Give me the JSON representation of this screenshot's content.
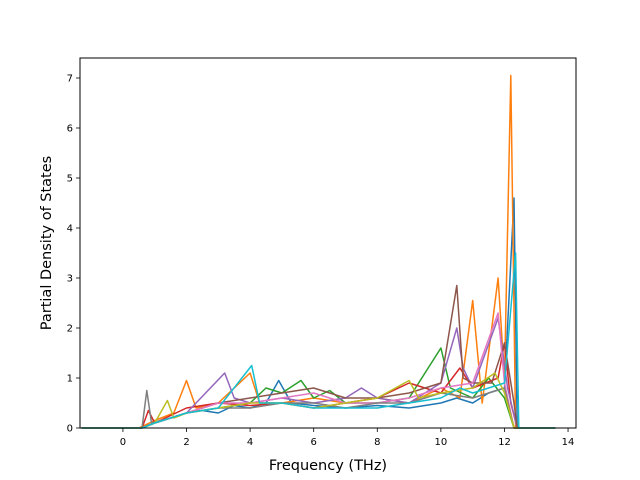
{
  "chart_data": {
    "type": "line",
    "title": "",
    "xlabel": "Frequency (THz)",
    "ylabel": "Partial Density of States",
    "xlim": [
      -1.35,
      14.25
    ],
    "ylim": [
      0,
      7.4
    ],
    "xticks": [
      0,
      2,
      4,
      6,
      8,
      10,
      12,
      14
    ],
    "yticks": [
      0,
      1,
      2,
      3,
      4,
      5,
      6,
      7
    ],
    "grid": false,
    "legend": "none",
    "colors": [
      "#1f77b4",
      "#ff7f0e",
      "#2ca02c",
      "#d62728",
      "#9467bd",
      "#8c564b",
      "#e377c2",
      "#7f7f7f",
      "#bcbd22",
      "#17becf"
    ],
    "series": [
      {
        "values": [
          [
            -1.3,
            0
          ],
          [
            0.5,
            0
          ],
          [
            1,
            0.1
          ],
          [
            1.5,
            0.2
          ],
          [
            2,
            0.3
          ],
          [
            2.5,
            0.35
          ],
          [
            3,
            0.3
          ],
          [
            3.5,
            0.45
          ],
          [
            4,
            0.4
          ],
          [
            4.5,
            0.5
          ],
          [
            4.9,
            0.95
          ],
          [
            5.3,
            0.5
          ],
          [
            6,
            0.45
          ],
          [
            7,
            0.4
          ],
          [
            8,
            0.45
          ],
          [
            9,
            0.4
          ],
          [
            10,
            0.5
          ],
          [
            10.5,
            0.6
          ],
          [
            11,
            0.5
          ],
          [
            11.5,
            0.7
          ],
          [
            12,
            0.8
          ],
          [
            12.3,
            4.6
          ],
          [
            12.4,
            0
          ],
          [
            13.6,
            0
          ]
        ]
      },
      {
        "values": [
          [
            -1.3,
            0
          ],
          [
            0.5,
            0
          ],
          [
            1,
            0.15
          ],
          [
            1.6,
            0.3
          ],
          [
            2,
            0.95
          ],
          [
            2.3,
            0.4
          ],
          [
            3,
            0.5
          ],
          [
            4,
            1.1
          ],
          [
            4.3,
            0.5
          ],
          [
            5,
            0.5
          ],
          [
            6,
            0.6
          ],
          [
            7,
            0.5
          ],
          [
            8,
            0.6
          ],
          [
            9,
            0.5
          ],
          [
            10,
            0.8
          ],
          [
            10.6,
            0.6
          ],
          [
            11,
            2.55
          ],
          [
            11.3,
            0.5
          ],
          [
            11.8,
            3.0
          ],
          [
            12,
            1.0
          ],
          [
            12.2,
            7.05
          ],
          [
            12.35,
            0
          ],
          [
            13.6,
            0
          ]
        ]
      },
      {
        "values": [
          [
            -1.3,
            0
          ],
          [
            0.6,
            0
          ],
          [
            1,
            0.1
          ],
          [
            2,
            0.3
          ],
          [
            3,
            0.4
          ],
          [
            4,
            0.5
          ],
          [
            4.5,
            0.8
          ],
          [
            5,
            0.7
          ],
          [
            5.6,
            0.95
          ],
          [
            6,
            0.6
          ],
          [
            6.5,
            0.75
          ],
          [
            7,
            0.5
          ],
          [
            8,
            0.5
          ],
          [
            9,
            0.6
          ],
          [
            10,
            1.6
          ],
          [
            10.3,
            0.8
          ],
          [
            11,
            0.6
          ],
          [
            11.5,
            1.0
          ],
          [
            12,
            0.6
          ],
          [
            12.3,
            0
          ],
          [
            13.6,
            0
          ]
        ]
      },
      {
        "values": [
          [
            -1.3,
            0
          ],
          [
            0.6,
            0
          ],
          [
            0.8,
            0.35
          ],
          [
            1,
            0.1
          ],
          [
            2,
            0.4
          ],
          [
            3,
            0.5
          ],
          [
            4,
            0.45
          ],
          [
            5,
            0.5
          ],
          [
            6,
            0.4
          ],
          [
            7,
            0.5
          ],
          [
            8,
            0.6
          ],
          [
            9,
            0.9
          ],
          [
            10,
            0.7
          ],
          [
            10.6,
            1.2
          ],
          [
            11,
            0.8
          ],
          [
            11.8,
            1.0
          ],
          [
            12,
            1.7
          ],
          [
            12.2,
            0.5
          ],
          [
            12.4,
            0
          ],
          [
            13.6,
            0
          ]
        ]
      },
      {
        "values": [
          [
            -1.3,
            0
          ],
          [
            0.6,
            0
          ],
          [
            1,
            0.1
          ],
          [
            2,
            0.3
          ],
          [
            3.2,
            1.1
          ],
          [
            3.5,
            0.6
          ],
          [
            4,
            0.5
          ],
          [
            5,
            0.6
          ],
          [
            6,
            0.5
          ],
          [
            7,
            0.6
          ],
          [
            7.5,
            0.8
          ],
          [
            8,
            0.6
          ],
          [
            9,
            0.5
          ],
          [
            10,
            0.9
          ],
          [
            10.5,
            2.0
          ],
          [
            10.7,
            1.2
          ],
          [
            11,
            0.8
          ],
          [
            11.8,
            2.2
          ],
          [
            12.1,
            0.8
          ],
          [
            12.4,
            0
          ],
          [
            13.6,
            0
          ]
        ]
      },
      {
        "values": [
          [
            -1.3,
            0
          ],
          [
            0.6,
            0
          ],
          [
            1,
            0.1
          ],
          [
            2,
            0.3
          ],
          [
            3,
            0.5
          ],
          [
            4,
            0.6
          ],
          [
            5,
            0.7
          ],
          [
            6,
            0.8
          ],
          [
            7,
            0.6
          ],
          [
            8,
            0.6
          ],
          [
            9,
            0.7
          ],
          [
            10,
            0.9
          ],
          [
            10.5,
            2.85
          ],
          [
            10.7,
            1.0
          ],
          [
            11,
            0.9
          ],
          [
            11.6,
            0.9
          ],
          [
            12,
            1.7
          ],
          [
            12.3,
            0.5
          ],
          [
            12.4,
            0
          ],
          [
            13.6,
            0
          ]
        ]
      },
      {
        "values": [
          [
            -1.3,
            0
          ],
          [
            0.6,
            0
          ],
          [
            1,
            0.1
          ],
          [
            2,
            0.3
          ],
          [
            3,
            0.5
          ],
          [
            4,
            0.5
          ],
          [
            5,
            0.6
          ],
          [
            6,
            0.7
          ],
          [
            7,
            0.5
          ],
          [
            8,
            0.5
          ],
          [
            9,
            0.6
          ],
          [
            10,
            0.8
          ],
          [
            11,
            0.9
          ],
          [
            11.8,
            2.3
          ],
          [
            12,
            0.9
          ],
          [
            12.3,
            0
          ],
          [
            13.6,
            0
          ]
        ]
      },
      {
        "values": [
          [
            -1.3,
            0
          ],
          [
            0.6,
            0
          ],
          [
            0.75,
            0.75
          ],
          [
            0.9,
            0.1
          ],
          [
            1.5,
            0.2
          ],
          [
            2,
            0.3
          ],
          [
            3,
            0.4
          ],
          [
            4,
            0.4
          ],
          [
            5,
            0.5
          ],
          [
            6,
            0.5
          ],
          [
            7,
            0.4
          ],
          [
            8,
            0.5
          ],
          [
            9,
            0.5
          ],
          [
            10,
            0.7
          ],
          [
            11,
            0.6
          ],
          [
            12,
            0.8
          ],
          [
            12.3,
            0
          ],
          [
            13.6,
            0
          ]
        ]
      },
      {
        "values": [
          [
            -1.3,
            0
          ],
          [
            0.6,
            0
          ],
          [
            1,
            0.1
          ],
          [
            1.4,
            0.55
          ],
          [
            1.6,
            0.2
          ],
          [
            2,
            0.3
          ],
          [
            3,
            0.4
          ],
          [
            4,
            0.5
          ],
          [
            5,
            0.5
          ],
          [
            6,
            0.4
          ],
          [
            7,
            0.5
          ],
          [
            8,
            0.6
          ],
          [
            9,
            0.95
          ],
          [
            9.3,
            0.6
          ],
          [
            10,
            0.7
          ],
          [
            11,
            0.8
          ],
          [
            11.7,
            1.1
          ],
          [
            12,
            0.7
          ],
          [
            12.3,
            0
          ],
          [
            13.6,
            0
          ]
        ]
      },
      {
        "values": [
          [
            -1.3,
            0
          ],
          [
            0.6,
            0
          ],
          [
            1,
            0.1
          ],
          [
            2,
            0.3
          ],
          [
            3,
            0.4
          ],
          [
            4.05,
            1.25
          ],
          [
            4.3,
            0.5
          ],
          [
            5,
            0.5
          ],
          [
            6,
            0.4
          ],
          [
            7,
            0.4
          ],
          [
            8,
            0.4
          ],
          [
            9,
            0.5
          ],
          [
            10,
            0.6
          ],
          [
            10.6,
            0.8
          ],
          [
            11,
            0.7
          ],
          [
            12,
            0.9
          ],
          [
            12.35,
            3.5
          ],
          [
            12.45,
            0
          ],
          [
            13.6,
            0
          ]
        ]
      }
    ]
  }
}
